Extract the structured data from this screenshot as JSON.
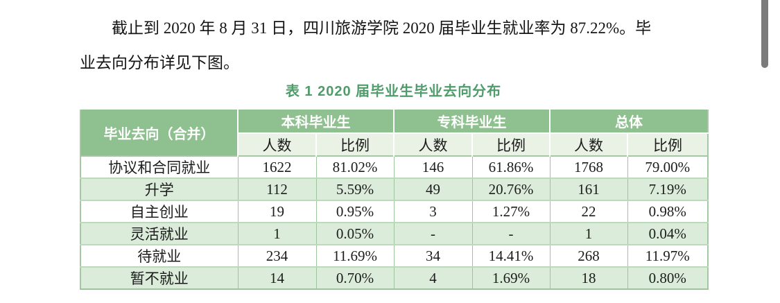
{
  "paragraph": {
    "line1": "截止到 2020 年 8 月 31 日，四川旅游学院 2020 届毕业生就业率为 87.22%。毕",
    "line2": "业去向分布详见下图。"
  },
  "table": {
    "caption": "表 1  2020 届毕业生毕业去向分布",
    "col0_header": "毕业去向（合并）",
    "groups": [
      {
        "label": "本科毕业生"
      },
      {
        "label": "专科毕业生"
      },
      {
        "label": "总体"
      }
    ],
    "subheaders": {
      "count": "人数",
      "ratio": "比例"
    },
    "rows": [
      {
        "label": "协议和合同就业",
        "cells": [
          "1622",
          "81.02%",
          "146",
          "61.86%",
          "1768",
          "79.00%"
        ]
      },
      {
        "label": "升学",
        "cells": [
          "112",
          "5.59%",
          "49",
          "20.76%",
          "161",
          "7.19%"
        ]
      },
      {
        "label": "自主创业",
        "cells": [
          "19",
          "0.95%",
          "3",
          "1.27%",
          "22",
          "0.98%"
        ]
      },
      {
        "label": "灵活就业",
        "cells": [
          "1",
          "0.05%",
          "-",
          "-",
          "1",
          "0.04%"
        ]
      },
      {
        "label": "待就业",
        "cells": [
          "234",
          "11.69%",
          "34",
          "14.41%",
          "268",
          "11.97%"
        ]
      },
      {
        "label": "暂不就业",
        "cells": [
          "14",
          "0.70%",
          "4",
          "1.69%",
          "18",
          "0.80%"
        ]
      }
    ]
  },
  "colors": {
    "header_green": "#8fc08f",
    "subheader_bg": "#e9f2e5",
    "alt_row_bg": "#dcecdb",
    "caption_green": "#4f9c6b",
    "scrollbar_gray": "#7b7b7b"
  }
}
